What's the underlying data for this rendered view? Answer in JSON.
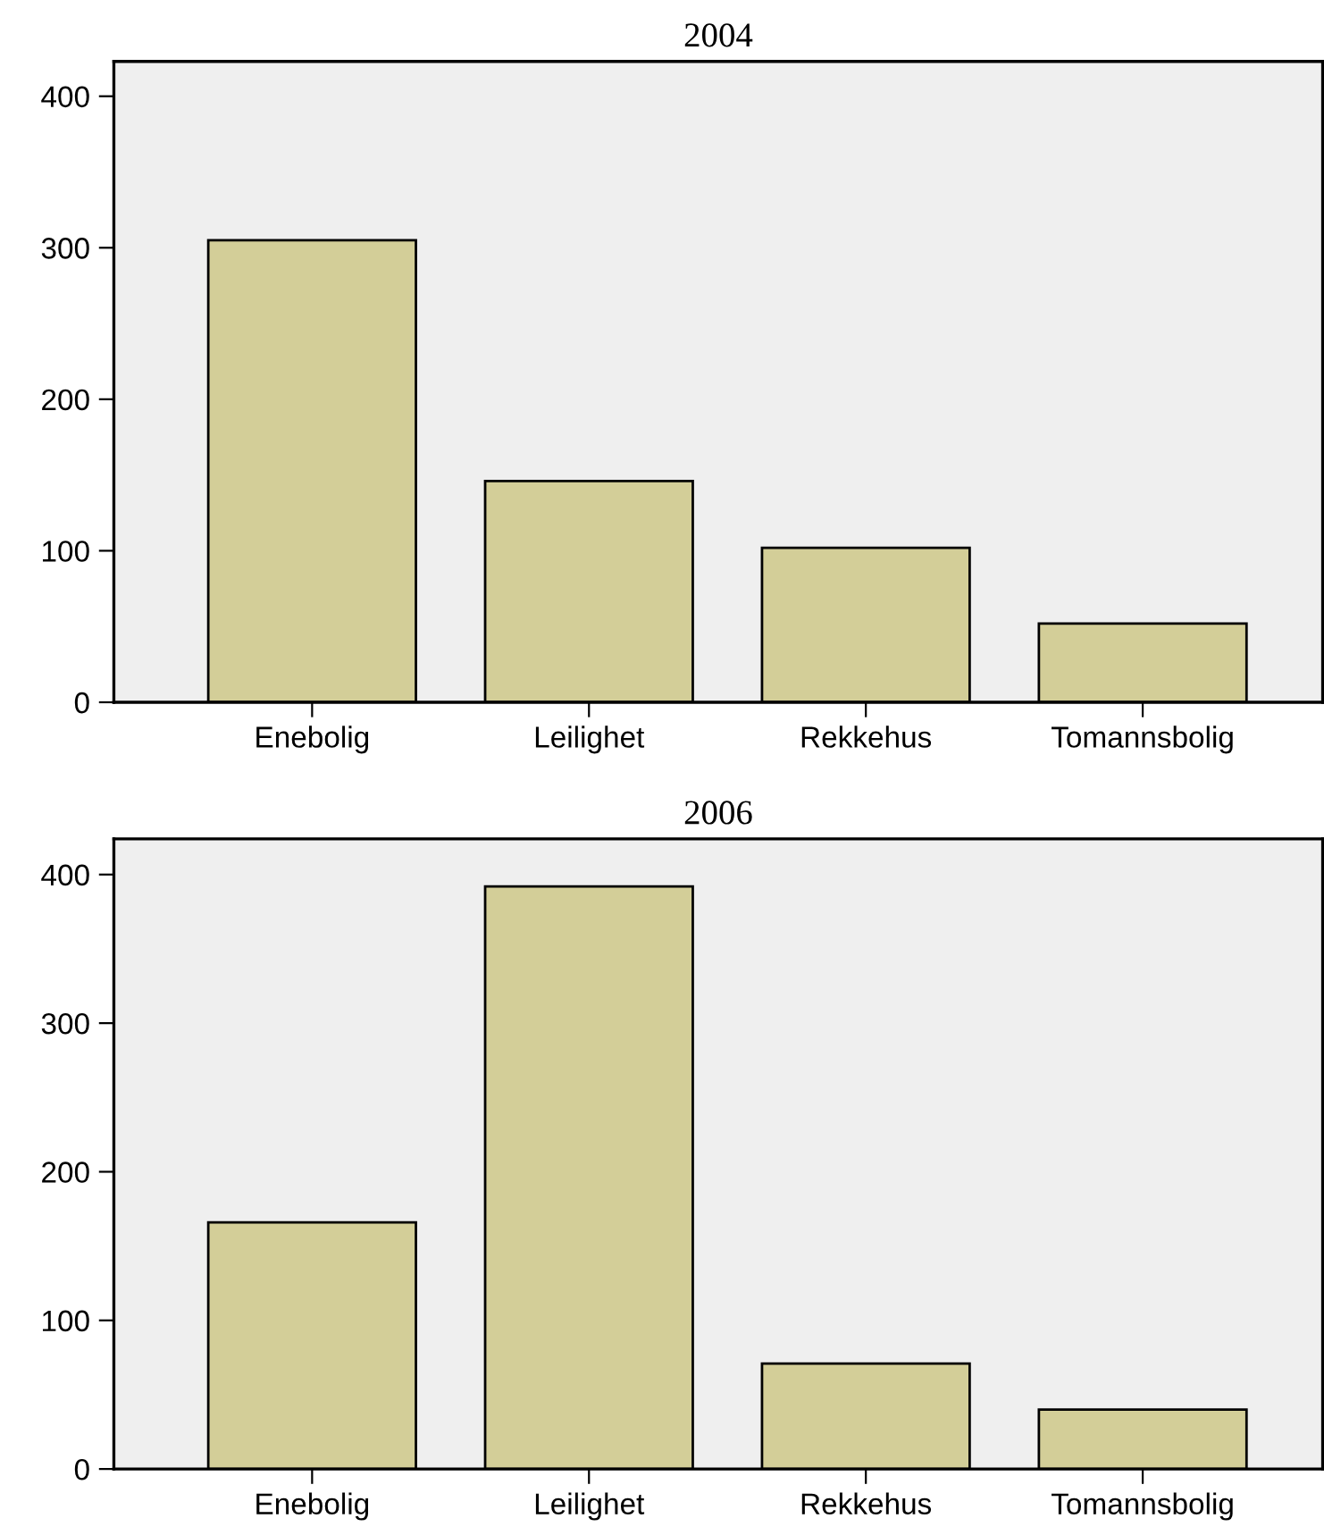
{
  "chart_data": [
    {
      "type": "bar",
      "title": "2004",
      "categories": [
        "Enebolig",
        "Leilighet",
        "Rekkehus",
        "Tomannsbolig"
      ],
      "values": [
        305,
        146,
        102,
        52
      ],
      "color": "#d3ce98",
      "ylim": [
        0,
        423
      ],
      "yticks": [
        0,
        100,
        200,
        300,
        400
      ],
      "grid": false,
      "legend": false
    },
    {
      "type": "bar",
      "title": "2006",
      "categories": [
        "Enebolig",
        "Leilighet",
        "Rekkehus",
        "Tomannsbolig"
      ],
      "values": [
        166,
        392,
        71,
        40
      ],
      "color": "#d3ce98",
      "ylim": [
        0,
        424
      ],
      "yticks": [
        0,
        100,
        200,
        300,
        400
      ],
      "grid": false,
      "legend": false
    }
  ]
}
